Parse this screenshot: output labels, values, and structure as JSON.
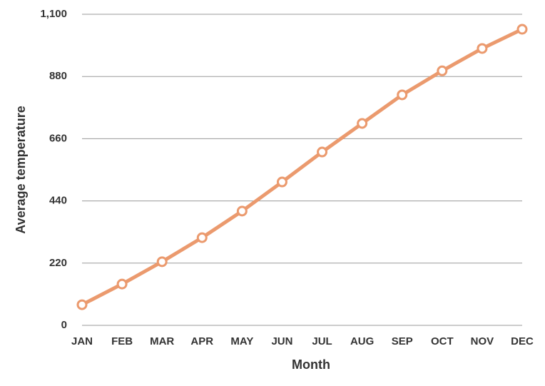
{
  "chart_data": {
    "type": "line",
    "x_label": "Month",
    "y_label": "Average temperature",
    "categories": [
      "JAN",
      "FEB",
      "MAR",
      "APR",
      "MAY",
      "JUN",
      "JUL",
      "AUG",
      "SEP",
      "OCT",
      "NOV",
      "DEC"
    ],
    "series": [
      {
        "name": "Average temperature",
        "color": "#eb9a6e",
        "values": [
          73,
          146,
          225,
          310,
          404,
          507,
          613,
          714,
          815,
          900,
          979,
          1047
        ]
      }
    ],
    "ylim": [
      0,
      1100
    ],
    "yticks": [
      0,
      220,
      440,
      660,
      880,
      {
        "value": 1100,
        "label": "1,100"
      }
    ],
    "grid": true
  }
}
